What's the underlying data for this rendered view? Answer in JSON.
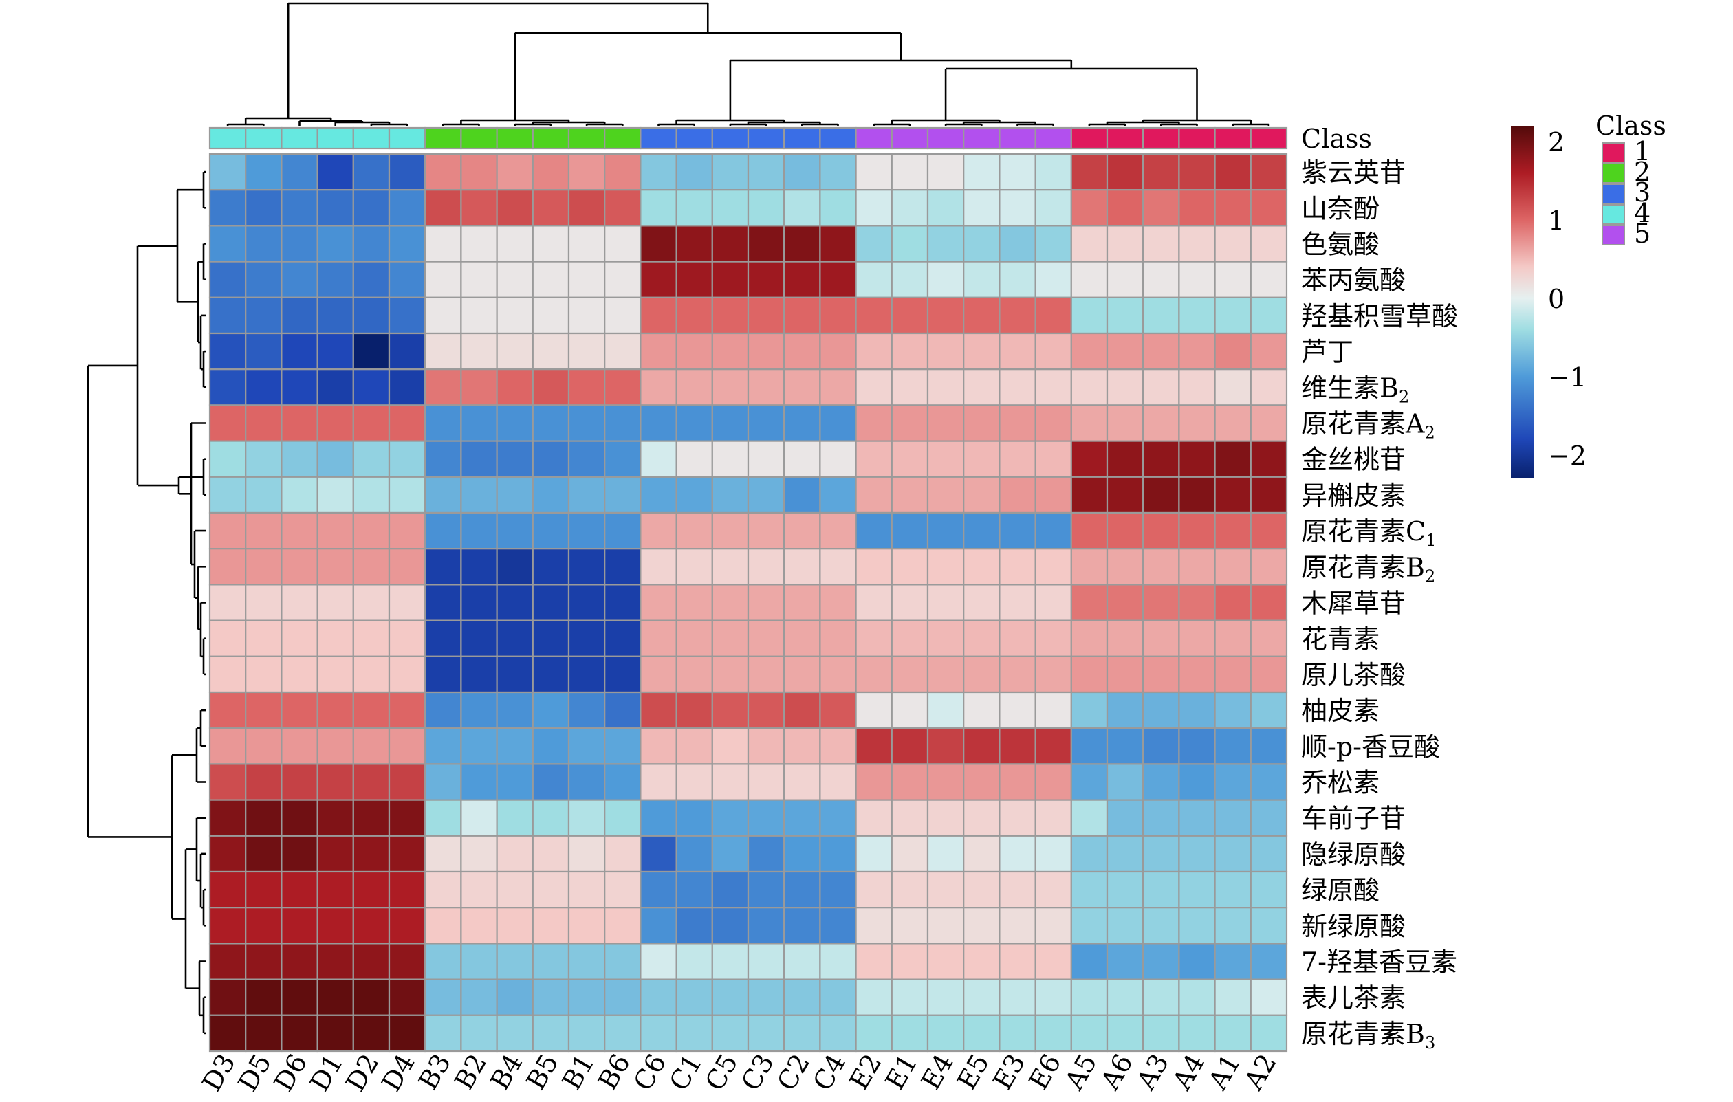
{
  "chart_data": {
    "type": "heatmap",
    "columns": [
      "D3",
      "D5",
      "D6",
      "D1",
      "D2",
      "D4",
      "B3",
      "B2",
      "B4",
      "B5",
      "B1",
      "B6",
      "C6",
      "C1",
      "C5",
      "C3",
      "C2",
      "C4",
      "E2",
      "E1",
      "E4",
      "E5",
      "E3",
      "E6",
      "A5",
      "A6",
      "A3",
      "A4",
      "A1",
      "A2"
    ],
    "column_class": [
      4,
      4,
      4,
      4,
      4,
      4,
      2,
      2,
      2,
      2,
      2,
      2,
      3,
      3,
      3,
      3,
      3,
      3,
      5,
      5,
      5,
      5,
      5,
      5,
      1,
      1,
      1,
      1,
      1,
      1
    ],
    "annotation_label": "Class",
    "rows": [
      {
        "label": "紫云英苷",
        "sub": ""
      },
      {
        "label": "山奈酚",
        "sub": ""
      },
      {
        "label": "色氨酸",
        "sub": ""
      },
      {
        "label": "苯丙氨酸",
        "sub": ""
      },
      {
        "label": "羟基积雪草酸",
        "sub": ""
      },
      {
        "label": "芦丁",
        "sub": ""
      },
      {
        "label": "维生素B",
        "sub": "2"
      },
      {
        "label": "原花青素A",
        "sub": "2"
      },
      {
        "label": "金丝桃苷",
        "sub": ""
      },
      {
        "label": "异槲皮素",
        "sub": ""
      },
      {
        "label": "原花青素C",
        "sub": "1"
      },
      {
        "label": "原花青素B",
        "sub": "2"
      },
      {
        "label": "木犀草苷",
        "sub": ""
      },
      {
        "label": "花青素",
        "sub": ""
      },
      {
        "label": "原儿茶酸",
        "sub": ""
      },
      {
        "label": "柚皮素",
        "sub": ""
      },
      {
        "label": "顺-p-香豆酸",
        "sub": ""
      },
      {
        "label": "乔松素",
        "sub": ""
      },
      {
        "label": "车前子苷",
        "sub": ""
      },
      {
        "label": "隐绿原酸",
        "sub": ""
      },
      {
        "label": "绿原酸",
        "sub": ""
      },
      {
        "label": "新绿原酸",
        "sub": ""
      },
      {
        "label": "7-羟基香豆素",
        "sub": ""
      },
      {
        "label": "表儿茶素",
        "sub": ""
      },
      {
        "label": "原花青素B",
        "sub": "3"
      }
    ],
    "values": [
      [
        -0.7,
        -1.0,
        -1.2,
        -1.8,
        -1.4,
        -1.6,
        0.8,
        0.8,
        0.7,
        0.8,
        0.7,
        0.8,
        -0.6,
        -0.7,
        -0.6,
        -0.6,
        -0.7,
        -0.6,
        0.1,
        0.1,
        0.1,
        -0.1,
        -0.1,
        -0.2,
        1.3,
        1.4,
        1.3,
        1.3,
        1.4,
        1.3
      ],
      [
        -1.3,
        -1.4,
        -1.3,
        -1.4,
        -1.4,
        -1.2,
        1.2,
        1.1,
        1.2,
        1.1,
        1.2,
        1.1,
        -0.4,
        -0.4,
        -0.4,
        -0.4,
        -0.3,
        -0.4,
        -0.1,
        -0.2,
        -0.3,
        -0.1,
        -0.1,
        -0.2,
        0.9,
        1.0,
        0.9,
        1.0,
        1.0,
        1.0
      ],
      [
        -1.1,
        -1.2,
        -1.2,
        -1.1,
        -1.2,
        -1.1,
        0.1,
        0.1,
        0.1,
        0.1,
        0.1,
        0.1,
        1.9,
        1.8,
        1.8,
        1.9,
        1.9,
        1.8,
        -0.5,
        -0.4,
        -0.5,
        -0.5,
        -0.6,
        -0.5,
        0.3,
        0.3,
        0.3,
        0.3,
        0.3,
        0.3
      ],
      [
        -1.4,
        -1.3,
        -1.2,
        -1.3,
        -1.4,
        -1.2,
        0.1,
        0.1,
        0.1,
        0.1,
        0.1,
        0.1,
        1.7,
        1.7,
        1.7,
        1.7,
        1.7,
        1.7,
        -0.2,
        -0.2,
        -0.1,
        -0.2,
        -0.2,
        -0.1,
        0.1,
        0.1,
        0.1,
        0.1,
        0.1,
        0.1
      ],
      [
        -1.4,
        -1.4,
        -1.5,
        -1.5,
        -1.5,
        -1.4,
        0.1,
        0.1,
        0.1,
        0.1,
        0.1,
        0.1,
        1.0,
        1.0,
        1.0,
        1.0,
        1.0,
        1.0,
        1.0,
        1.0,
        1.0,
        1.0,
        1.0,
        1.0,
        -0.4,
        -0.4,
        -0.4,
        -0.4,
        -0.4,
        -0.4
      ],
      [
        -1.7,
        -1.6,
        -1.8,
        -1.8,
        -2.3,
        -1.9,
        0.2,
        0.2,
        0.2,
        0.2,
        0.2,
        0.2,
        0.7,
        0.7,
        0.7,
        0.7,
        0.7,
        0.7,
        0.5,
        0.5,
        0.5,
        0.5,
        0.5,
        0.5,
        0.7,
        0.7,
        0.7,
        0.7,
        0.8,
        0.7
      ],
      [
        -1.7,
        -1.8,
        -1.8,
        -1.9,
        -1.8,
        -1.9,
        0.9,
        0.9,
        1.0,
        1.1,
        1.0,
        1.0,
        0.6,
        0.6,
        0.6,
        0.6,
        0.6,
        0.6,
        0.3,
        0.3,
        0.3,
        0.3,
        0.3,
        0.3,
        0.3,
        0.3,
        0.3,
        0.3,
        0.2,
        0.3
      ],
      [
        1.0,
        1.0,
        1.0,
        1.0,
        1.0,
        1.0,
        -1.1,
        -1.1,
        -1.1,
        -1.1,
        -1.1,
        -1.1,
        -1.1,
        -1.1,
        -1.1,
        -1.1,
        -1.1,
        -1.1,
        0.7,
        0.7,
        0.7,
        0.7,
        0.7,
        0.7,
        0.6,
        0.6,
        0.6,
        0.6,
        0.6,
        0.6
      ],
      [
        -0.4,
        -0.5,
        -0.6,
        -0.7,
        -0.5,
        -0.5,
        -1.2,
        -1.3,
        -1.3,
        -1.3,
        -1.2,
        -1.1,
        -0.1,
        0.1,
        0.1,
        0.1,
        0.1,
        0.1,
        0.5,
        0.5,
        0.5,
        0.5,
        0.5,
        0.5,
        1.7,
        1.8,
        1.8,
        1.8,
        1.9,
        1.8
      ],
      [
        -0.5,
        -0.5,
        -0.3,
        -0.2,
        -0.3,
        -0.3,
        -0.8,
        -0.8,
        -0.8,
        -0.9,
        -0.8,
        -0.8,
        -0.9,
        -0.9,
        -0.8,
        -0.8,
        -1.1,
        -0.9,
        0.6,
        0.6,
        0.6,
        0.6,
        0.7,
        0.7,
        1.8,
        1.8,
        1.9,
        1.9,
        1.8,
        1.8
      ],
      [
        0.7,
        0.7,
        0.7,
        0.7,
        0.7,
        0.7,
        -1.1,
        -1.1,
        -1.1,
        -1.1,
        -1.1,
        -1.1,
        0.6,
        0.6,
        0.6,
        0.6,
        0.6,
        0.6,
        -1.1,
        -1.1,
        -1.1,
        -1.1,
        -1.1,
        -1.1,
        1.0,
        1.0,
        1.0,
        1.0,
        1.0,
        1.0
      ],
      [
        0.7,
        0.7,
        0.7,
        0.7,
        0.7,
        0.7,
        -1.9,
        -1.9,
        -2.0,
        -1.9,
        -1.9,
        -1.9,
        0.3,
        0.3,
        0.3,
        0.3,
        0.3,
        0.3,
        0.4,
        0.4,
        0.4,
        0.4,
        0.4,
        0.4,
        0.6,
        0.6,
        0.6,
        0.6,
        0.6,
        0.6
      ],
      [
        0.3,
        0.3,
        0.3,
        0.3,
        0.3,
        0.3,
        -1.9,
        -1.9,
        -1.9,
        -1.9,
        -1.9,
        -1.9,
        0.6,
        0.6,
        0.6,
        0.6,
        0.6,
        0.6,
        0.3,
        0.3,
        0.3,
        0.3,
        0.3,
        0.3,
        0.9,
        0.9,
        0.9,
        0.9,
        1.0,
        1.0
      ],
      [
        0.4,
        0.4,
        0.4,
        0.4,
        0.4,
        0.4,
        -1.9,
        -1.9,
        -1.9,
        -1.9,
        -1.9,
        -1.9,
        0.6,
        0.6,
        0.6,
        0.6,
        0.6,
        0.6,
        0.5,
        0.5,
        0.5,
        0.5,
        0.5,
        0.5,
        0.6,
        0.6,
        0.6,
        0.6,
        0.6,
        0.6
      ],
      [
        0.4,
        0.4,
        0.4,
        0.4,
        0.4,
        0.4,
        -1.9,
        -1.9,
        -1.9,
        -1.9,
        -1.9,
        -1.9,
        0.6,
        0.6,
        0.6,
        0.6,
        0.6,
        0.6,
        0.6,
        0.6,
        0.6,
        0.6,
        0.6,
        0.6,
        0.7,
        0.7,
        0.7,
        0.7,
        0.7,
        0.7
      ],
      [
        1.0,
        1.0,
        1.0,
        1.0,
        1.0,
        1.0,
        -1.2,
        -1.1,
        -1.1,
        -1.0,
        -1.2,
        -1.4,
        1.2,
        1.2,
        1.1,
        1.1,
        1.2,
        1.1,
        0.1,
        0.1,
        -0.1,
        0.1,
        0.1,
        0.1,
        -0.6,
        -0.8,
        -0.8,
        -0.8,
        -0.7,
        -0.6
      ],
      [
        0.7,
        0.7,
        0.7,
        0.7,
        0.7,
        0.7,
        -0.9,
        -0.9,
        -0.9,
        -1.0,
        -0.9,
        -0.9,
        0.5,
        0.5,
        0.4,
        0.5,
        0.5,
        0.5,
        1.4,
        1.4,
        1.3,
        1.4,
        1.4,
        1.4,
        -1.1,
        -1.1,
        -1.2,
        -1.2,
        -1.1,
        -1.1
      ],
      [
        1.2,
        1.3,
        1.3,
        1.3,
        1.3,
        1.3,
        -0.8,
        -1.0,
        -1.0,
        -1.2,
        -1.1,
        -1.0,
        0.3,
        0.3,
        0.3,
        0.3,
        0.3,
        0.3,
        0.7,
        0.7,
        0.7,
        0.7,
        0.7,
        0.7,
        -0.9,
        -0.7,
        -0.9,
        -1.0,
        -0.9,
        -0.9
      ],
      [
        1.9,
        2.0,
        2.0,
        1.9,
        1.9,
        1.9,
        -0.4,
        -0.1,
        -0.4,
        -0.4,
        -0.3,
        -0.4,
        -1.0,
        -1.0,
        -0.9,
        -0.9,
        -0.9,
        -0.9,
        0.3,
        0.3,
        0.3,
        0.3,
        0.3,
        0.3,
        -0.3,
        -0.7,
        -0.7,
        -0.7,
        -0.7,
        -0.7
      ],
      [
        1.8,
        2.0,
        2.0,
        1.8,
        1.8,
        1.8,
        0.2,
        0.2,
        0.3,
        0.3,
        0.2,
        0.3,
        -1.6,
        -1.1,
        -0.9,
        -1.2,
        -1.0,
        -1.0,
        -0.1,
        0.2,
        -0.1,
        0.2,
        -0.1,
        -0.1,
        -0.6,
        -0.6,
        -0.6,
        -0.6,
        -0.6,
        -0.6
      ],
      [
        1.6,
        1.6,
        1.6,
        1.6,
        1.6,
        1.6,
        0.3,
        0.3,
        0.3,
        0.3,
        0.3,
        0.3,
        -1.2,
        -1.2,
        -1.3,
        -1.2,
        -1.2,
        -1.2,
        0.3,
        0.3,
        0.3,
        0.3,
        0.3,
        0.3,
        -0.5,
        -0.5,
        -0.5,
        -0.5,
        -0.5,
        -0.5
      ],
      [
        1.6,
        1.6,
        1.6,
        1.6,
        1.6,
        1.6,
        0.4,
        0.4,
        0.4,
        0.4,
        0.4,
        0.4,
        -1.1,
        -1.3,
        -1.3,
        -1.2,
        -1.2,
        -1.2,
        0.2,
        0.2,
        0.2,
        0.2,
        0.2,
        0.2,
        -0.5,
        -0.5,
        -0.5,
        -0.5,
        -0.5,
        -0.5
      ],
      [
        1.8,
        1.8,
        1.8,
        1.8,
        1.8,
        1.8,
        -0.6,
        -0.6,
        -0.6,
        -0.6,
        -0.6,
        -0.6,
        -0.1,
        -0.2,
        -0.2,
        -0.2,
        -0.2,
        -0.2,
        0.4,
        0.4,
        0.4,
        0.4,
        0.4,
        0.4,
        -1.0,
        -0.9,
        -0.9,
        -1.0,
        -0.9,
        -0.9
      ],
      [
        2.0,
        2.1,
        2.1,
        2.1,
        2.1,
        2.0,
        -0.7,
        -0.7,
        -0.8,
        -0.7,
        -0.7,
        -0.7,
        -0.6,
        -0.6,
        -0.6,
        -0.6,
        -0.6,
        -0.6,
        -0.2,
        -0.2,
        -0.2,
        -0.2,
        -0.2,
        -0.2,
        -0.3,
        -0.3,
        -0.3,
        -0.3,
        -0.2,
        -0.1
      ],
      [
        2.1,
        2.1,
        2.1,
        2.1,
        2.1,
        2.1,
        -0.5,
        -0.5,
        -0.5,
        -0.5,
        -0.5,
        -0.5,
        -0.5,
        -0.5,
        -0.5,
        -0.5,
        -0.5,
        -0.5,
        -0.4,
        -0.4,
        -0.4,
        -0.4,
        -0.4,
        -0.4,
        -0.4,
        -0.4,
        -0.4,
        -0.4,
        -0.4,
        -0.4
      ]
    ],
    "color_scale": {
      "min": -2.3,
      "max": 2.2,
      "stops": [
        {
          "v": -2.3,
          "c": "#08206c"
        },
        {
          "v": -1.8,
          "c": "#1f47b8"
        },
        {
          "v": -1.0,
          "c": "#4f9bd9"
        },
        {
          "v": -0.4,
          "c": "#9fdde2"
        },
        {
          "v": 0.0,
          "c": "#e6f0f0"
        },
        {
          "v": 0.4,
          "c": "#f4c9c6"
        },
        {
          "v": 1.0,
          "c": "#dd6565"
        },
        {
          "v": 1.6,
          "c": "#ad1c24"
        },
        {
          "v": 2.2,
          "c": "#520a0a"
        }
      ],
      "ticks": [
        2,
        1,
        0,
        -1,
        -2
      ],
      "tick_labels": [
        "2",
        "1",
        "0",
        "−1",
        "−2"
      ]
    },
    "legend": {
      "title": "Class",
      "items": [
        {
          "label": "1",
          "color": "#e0185d"
        },
        {
          "label": "2",
          "color": "#4ed31e"
        },
        {
          "label": "3",
          "color": "#3a6ee6"
        },
        {
          "label": "4",
          "color": "#66e8e0"
        },
        {
          "label": "5",
          "color": "#b250ee"
        }
      ]
    },
    "column_dendrogram": true,
    "row_dendrogram": true
  }
}
